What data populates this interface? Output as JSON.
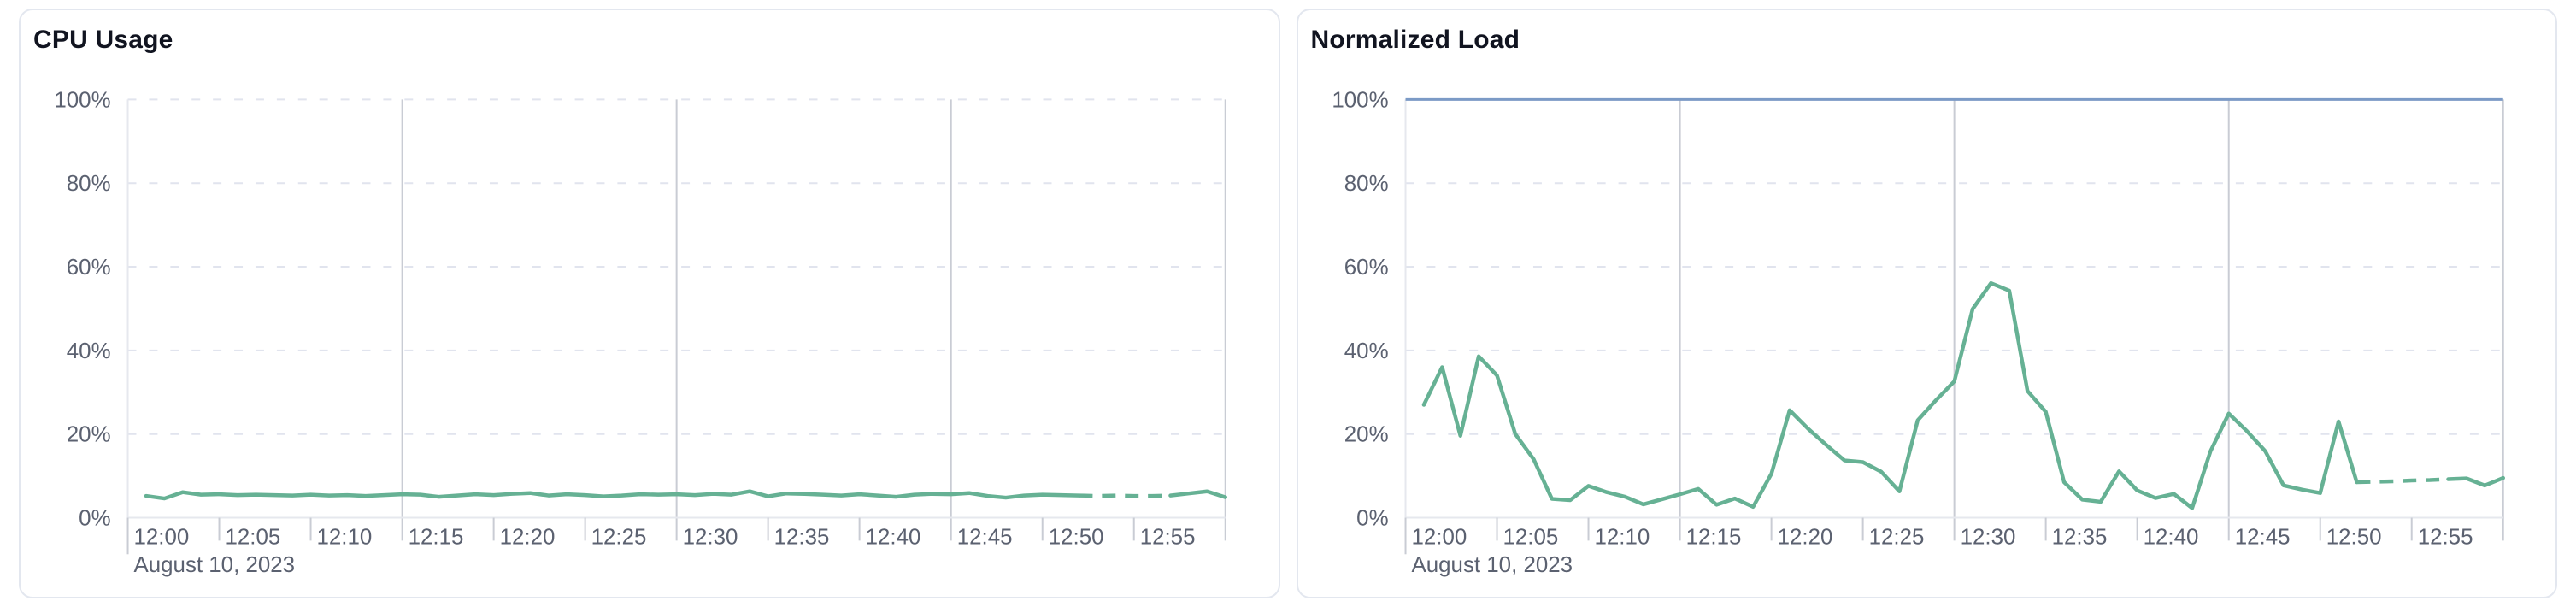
{
  "page": {
    "background": "#ffffff"
  },
  "chart_data": [
    {
      "type": "line",
      "title": "CPU Usage",
      "x_axis_date_label": "August 10, 2023",
      "x_unit": "minutes after 12:00",
      "xlim": [
        0,
        60
      ],
      "ylim": [
        0,
        100
      ],
      "grid": "horizontal-dashed, vertical-solid-at-quarter-hours",
      "legend": "none",
      "y_ticks": [
        {
          "value": 0,
          "label": "0%"
        },
        {
          "value": 20,
          "label": "20%"
        },
        {
          "value": 40,
          "label": "40%"
        },
        {
          "value": 60,
          "label": "60%"
        },
        {
          "value": 80,
          "label": "80%"
        },
        {
          "value": 100,
          "label": "100%"
        }
      ],
      "x_ticks": [
        {
          "minute": 0,
          "label": "12:00"
        },
        {
          "minute": 5,
          "label": "12:05"
        },
        {
          "minute": 10,
          "label": "12:10"
        },
        {
          "minute": 15,
          "label": "12:15"
        },
        {
          "minute": 20,
          "label": "12:20"
        },
        {
          "minute": 25,
          "label": "12:25"
        },
        {
          "minute": 30,
          "label": "12:30"
        },
        {
          "minute": 35,
          "label": "12:35"
        },
        {
          "minute": 40,
          "label": "12:40"
        },
        {
          "minute": 45,
          "label": "12:45"
        },
        {
          "minute": 50,
          "label": "12:50"
        },
        {
          "minute": 55,
          "label": "12:55"
        }
      ],
      "vertical_gridline_minutes": [
        15,
        30,
        45,
        60
      ],
      "threshold_line": null,
      "series": [
        {
          "name": "cpu-usage",
          "color": "#66b194",
          "x_start_minute": 1,
          "x_step_minutes": 1,
          "values": [
            5.2,
            4.6,
            6.1,
            5.5,
            5.6,
            5.4,
            5.5,
            5.4,
            5.3,
            5.5,
            5.3,
            5.4,
            5.2,
            5.4,
            5.6,
            5.5,
            5.0,
            5.3,
            5.6,
            5.4,
            5.7,
            5.9,
            5.3,
            5.6,
            5.4,
            5.1,
            5.3,
            5.6,
            5.5,
            5.6,
            5.4,
            5.7,
            5.5,
            6.3,
            5.1,
            5.8,
            5.7,
            5.5,
            5.3,
            5.6,
            5.3,
            5.0,
            5.5,
            5.7,
            5.6,
            5.9,
            5.2,
            4.8,
            5.3,
            5.5,
            5.4,
            5.3,
            5.2,
            5.3,
            5.2,
            5.2,
            5.3,
            5.8,
            6.3,
            4.9
          ],
          "dashed_from_x": 52,
          "dashed_to_x": 57
        }
      ]
    },
    {
      "type": "line",
      "title": "Normalized Load",
      "x_axis_date_label": "August 10, 2023",
      "x_unit": "minutes after 12:00",
      "xlim": [
        0,
        60
      ],
      "ylim": [
        0,
        100
      ],
      "grid": "horizontal-dashed, vertical-solid-at-quarter-hours",
      "legend": "none",
      "y_ticks": [
        {
          "value": 0,
          "label": "0%"
        },
        {
          "value": 20,
          "label": "20%"
        },
        {
          "value": 40,
          "label": "40%"
        },
        {
          "value": 60,
          "label": "60%"
        },
        {
          "value": 80,
          "label": "80%"
        },
        {
          "value": 100,
          "label": "100%"
        }
      ],
      "x_ticks": [
        {
          "minute": 0,
          "label": "12:00"
        },
        {
          "minute": 5,
          "label": "12:05"
        },
        {
          "minute": 10,
          "label": "12:10"
        },
        {
          "minute": 15,
          "label": "12:15"
        },
        {
          "minute": 20,
          "label": "12:20"
        },
        {
          "minute": 25,
          "label": "12:25"
        },
        {
          "minute": 30,
          "label": "12:30"
        },
        {
          "minute": 35,
          "label": "12:35"
        },
        {
          "minute": 40,
          "label": "12:40"
        },
        {
          "minute": 45,
          "label": "12:45"
        },
        {
          "minute": 50,
          "label": "12:50"
        },
        {
          "minute": 55,
          "label": "12:55"
        }
      ],
      "vertical_gridline_minutes": [
        15,
        30,
        45,
        60
      ],
      "threshold_line": {
        "value": 100,
        "color": "#7b9ac6"
      },
      "series": [
        {
          "name": "normalized-load",
          "color": "#66b194",
          "x_start_minute": 1,
          "x_step_minutes": 1,
          "values": [
            27,
            36,
            19.6,
            38.6,
            34,
            20,
            14,
            4.5,
            4.2,
            7.6,
            6.1,
            5.0,
            3.2,
            4.4,
            5.6,
            6.9,
            3.1,
            4.6,
            2.6,
            10.5,
            25.7,
            21.3,
            17.4,
            13.7,
            13.3,
            11.0,
            6.3,
            23.3,
            28.1,
            32.6,
            49.9,
            56.1,
            54.3,
            30.3,
            25.3,
            8.5,
            4.3,
            3.8,
            11.1,
            6.5,
            4.7,
            5.7,
            2.3,
            15.9,
            24.9,
            20.7,
            15.9,
            7.7,
            6.7,
            5.9,
            23.0,
            8.5,
            8.6,
            8.7,
            8.9,
            9.0,
            9.2,
            9.4,
            7.7,
            9.5
          ],
          "dashed_from_x": 52,
          "dashed_to_x": 57
        }
      ]
    }
  ]
}
